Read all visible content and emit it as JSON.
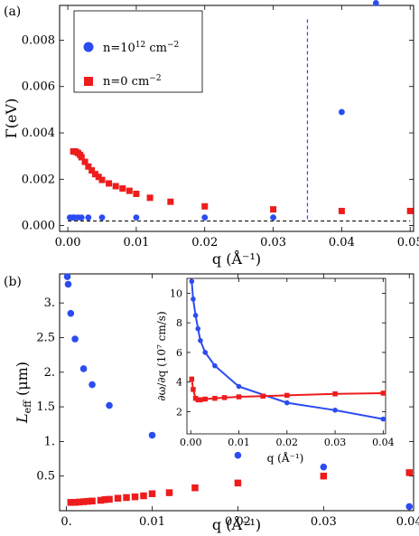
{
  "figure": {
    "panel_a_label": "(a)",
    "panel_b_label": "(b)"
  },
  "colors": {
    "blue": "#2b4cf0",
    "red": "#ee1c1c",
    "blue_line": "#2b4cf0",
    "black": "#000000"
  },
  "chart_data": [
    {
      "id": "panel-a",
      "type": "scatter",
      "title": "",
      "xlabel": "q (Å⁻¹)",
      "ylabel": "Γ(eV)",
      "xlim": [
        -0.0012,
        0.0505
      ],
      "ylim": [
        -0.00025,
        0.0095
      ],
      "xticks": [
        0.0,
        0.01,
        0.02,
        0.03,
        0.04,
        0.05
      ],
      "xtick_labels": [
        "0.00",
        "0.01",
        "0.02",
        "0.03",
        "0.04",
        "0.05"
      ],
      "yticks": [
        0.0,
        0.002,
        0.004,
        0.006,
        0.008
      ],
      "ytick_labels": [
        "0.000",
        "0.002",
        "0.004",
        "0.006",
        "0.008"
      ],
      "legend_position": "top-left",
      "series": [
        {
          "name": "n=10¹² cm⁻²",
          "name_main": "n=10",
          "name_sup1": "12",
          "name_mid": " cm",
          "name_sup2": "−2",
          "marker": "circle",
          "color": "#2b4cf0",
          "points": [
            [
              0.0003,
              0.00035
            ],
            [
              0.0007,
              0.00035
            ],
            [
              0.001,
              0.00035
            ],
            [
              0.0015,
              0.00035
            ],
            [
              0.002,
              0.00035
            ],
            [
              0.003,
              0.00035
            ],
            [
              0.005,
              0.00035
            ],
            [
              0.01,
              0.00035
            ],
            [
              0.02,
              0.00035
            ],
            [
              0.03,
              0.00035
            ],
            [
              0.04,
              0.0049
            ],
            [
              0.045,
              0.0096
            ]
          ]
        },
        {
          "name": "n=0 cm⁻²",
          "name_main": "n=0",
          "name_sup1": "",
          "name_mid": " cm",
          "name_sup2": "−2",
          "marker": "square",
          "color": "#ee1c1c",
          "points": [
            [
              0.0008,
              0.0032
            ],
            [
              0.001,
              0.0032
            ],
            [
              0.0012,
              0.00318
            ],
            [
              0.0015,
              0.00313
            ],
            [
              0.0018,
              0.00305
            ],
            [
              0.002,
              0.00295
            ],
            [
              0.0025,
              0.00275
            ],
            [
              0.003,
              0.00255
            ],
            [
              0.0035,
              0.00238
            ],
            [
              0.004,
              0.00222
            ],
            [
              0.0045,
              0.0021
            ],
            [
              0.005,
              0.00197
            ],
            [
              0.006,
              0.00182
            ],
            [
              0.007,
              0.0017
            ],
            [
              0.008,
              0.0016
            ],
            [
              0.009,
              0.0015
            ],
            [
              0.01,
              0.00137
            ],
            [
              0.012,
              0.0012
            ],
            [
              0.015,
              0.00103
            ],
            [
              0.02,
              0.00083
            ],
            [
              0.03,
              0.0007
            ],
            [
              0.04,
              0.00063
            ],
            [
              0.05,
              0.00063
            ]
          ]
        }
      ],
      "reference_lines": [
        {
          "kind": "horizontal",
          "y": 0.0002,
          "style": "dashed",
          "color": "#000000"
        },
        {
          "kind": "vertical",
          "x": 0.035,
          "style": "dashed",
          "color": "#2b4cf0"
        }
      ]
    },
    {
      "id": "panel-b",
      "type": "scatter",
      "title": "",
      "xlabel": "q (Å⁻¹)",
      "ylabel": "L_eff (μm)",
      "ylabel_main": "L",
      "ylabel_sub": "eff",
      "ylabel_unit": " (μm)",
      "xlim": [
        -0.0008,
        0.0405
      ],
      "ylim": [
        0.0,
        3.42
      ],
      "xticks": [
        0.0,
        0.01,
        0.02,
        0.03,
        0.04
      ],
      "xtick_labels": [
        "0.",
        "0.01",
        "0.02",
        "0.03",
        "0.04"
      ],
      "yticks": [
        0.5,
        1.0,
        1.5,
        2.0,
        2.5,
        3.0
      ],
      "ytick_labels": [
        "0.5",
        "1.",
        "1.5",
        "2.",
        "2.5",
        "3."
      ],
      "series": [
        {
          "name": "blue",
          "marker": "circle",
          "color": "#2b4cf0",
          "points": [
            [
              0.0001,
              3.38
            ],
            [
              0.0002,
              3.27
            ],
            [
              0.0005,
              2.85
            ],
            [
              0.001,
              2.48
            ],
            [
              0.002,
              2.05
            ],
            [
              0.003,
              1.82
            ],
            [
              0.005,
              1.52
            ],
            [
              0.01,
              1.09
            ],
            [
              0.02,
              0.8
            ],
            [
              0.03,
              0.63
            ],
            [
              0.04,
              0.06
            ]
          ]
        },
        {
          "name": "red",
          "marker": "square",
          "color": "#ee1c1c",
          "points": [
            [
              0.0005,
              0.12
            ],
            [
              0.001,
              0.12
            ],
            [
              0.0015,
              0.125
            ],
            [
              0.002,
              0.13
            ],
            [
              0.0025,
              0.135
            ],
            [
              0.003,
              0.14
            ],
            [
              0.004,
              0.15
            ],
            [
              0.0045,
              0.16
            ],
            [
              0.005,
              0.165
            ],
            [
              0.006,
              0.18
            ],
            [
              0.007,
              0.19
            ],
            [
              0.008,
              0.2
            ],
            [
              0.009,
              0.215
            ],
            [
              0.01,
              0.245
            ],
            [
              0.012,
              0.26
            ],
            [
              0.015,
              0.33
            ],
            [
              0.02,
              0.4
            ],
            [
              0.03,
              0.5
            ],
            [
              0.04,
              0.55
            ]
          ]
        }
      ],
      "inset": {
        "type": "line",
        "xlabel": "q (Å⁻¹)",
        "ylabel": "∂ω/∂q (10⁷ cm/s)",
        "xlim": [
          -0.0008,
          0.0405
        ],
        "ylim": [
          0.5,
          11.0
        ],
        "xticks": [
          0.0,
          0.01,
          0.02,
          0.03,
          0.04
        ],
        "xtick_labels": [
          "0.00",
          "0.01",
          "0.02",
          "0.03",
          "0.04"
        ],
        "yticks": [
          2,
          4,
          6,
          8,
          10
        ],
        "ytick_labels": [
          "2",
          "4",
          "6",
          "8",
          "10"
        ],
        "series": [
          {
            "name": "blue",
            "color": "#2b4cf0",
            "marker": "circle",
            "points": [
              [
                0.0002,
                10.8
              ],
              [
                0.0005,
                9.6
              ],
              [
                0.001,
                8.5
              ],
              [
                0.0015,
                7.6
              ],
              [
                0.002,
                6.8
              ],
              [
                0.003,
                6.0
              ],
              [
                0.005,
                5.1
              ],
              [
                0.01,
                3.7
              ],
              [
                0.02,
                2.6
              ],
              [
                0.03,
                2.1
              ],
              [
                0.04,
                1.5
              ]
            ]
          },
          {
            "name": "red",
            "color": "#ee1c1c",
            "marker": "square",
            "points": [
              [
                0.0002,
                4.2
              ],
              [
                0.0005,
                3.5
              ],
              [
                0.001,
                2.9
              ],
              [
                0.0015,
                2.8
              ],
              [
                0.002,
                2.8
              ],
              [
                0.003,
                2.85
              ],
              [
                0.005,
                2.9
              ],
              [
                0.007,
                2.95
              ],
              [
                0.01,
                3.0
              ],
              [
                0.015,
                3.05
              ],
              [
                0.02,
                3.1
              ],
              [
                0.03,
                3.2
              ],
              [
                0.04,
                3.25
              ]
            ]
          }
        ]
      }
    }
  ]
}
